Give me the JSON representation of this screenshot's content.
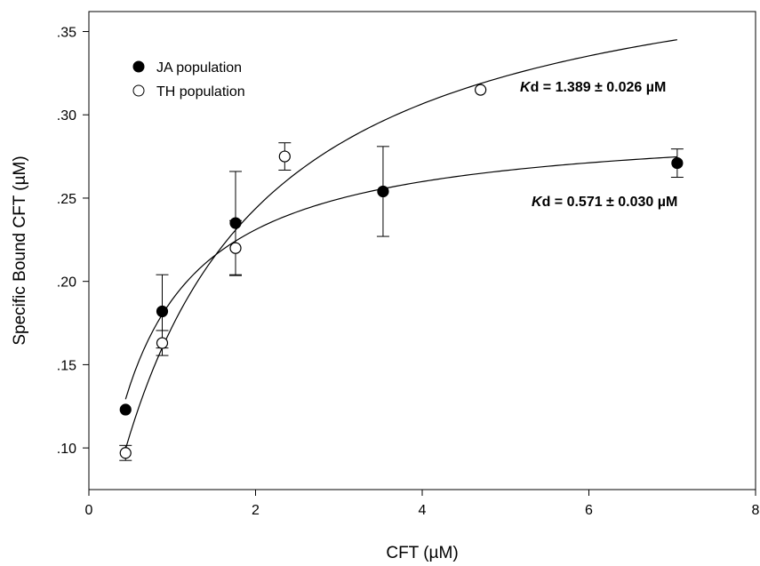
{
  "chart_data": {
    "type": "scatter",
    "title": "",
    "xlabel": "CFT (µM)",
    "ylabel": "Specific Bound CFT (µM)",
    "xlim": [
      0,
      8
    ],
    "ylim": [
      0.075,
      0.362
    ],
    "x_ticks": [
      0,
      2,
      4,
      6,
      8
    ],
    "x_tick_labels": [
      "0",
      "2",
      "4",
      "6",
      "8"
    ],
    "y_ticks": [
      0.1,
      0.15,
      0.2,
      0.25,
      0.3,
      0.35
    ],
    "y_tick_labels": [
      ".10",
      ".15",
      ".20",
      ".25",
      ".30",
      ".35"
    ],
    "grid": false,
    "legend_position": "top-left",
    "series": [
      {
        "name": "JA population",
        "marker": "filled-circle",
        "color": "#000000",
        "x": [
          0.44,
          0.88,
          1.76,
          3.53,
          7.06
        ],
        "y": [
          0.123,
          0.182,
          0.235,
          0.254,
          0.271
        ],
        "yerr": [
          0.0,
          0.022,
          0.031,
          0.027,
          0.0085
        ],
        "fit": {
          "model": "one-site binding",
          "Bmax": 0.297,
          "Kd": 0.571,
          "x_range": [
            0.44,
            7.06
          ]
        }
      },
      {
        "name": "TH population",
        "marker": "open-circle",
        "color": "#000000",
        "x": [
          0.44,
          0.88,
          1.76,
          2.35,
          4.7
        ],
        "y": [
          0.097,
          0.163,
          0.22,
          0.275,
          0.315
        ],
        "yerr": [
          0.0045,
          0.0075,
          0.0165,
          0.0082,
          0.0
        ],
        "fit": {
          "model": "one-site binding",
          "Bmax": 0.413,
          "Kd": 1.389,
          "x_range": [
            0.44,
            7.06
          ]
        }
      }
    ],
    "annotations": [
      {
        "text": "Kd = 1.389 ±  0.026  µM",
        "italic_prefix": "K",
        "rest": "d = 1.389 ±  0.026  µM",
        "series": "TH population"
      },
      {
        "text": "Kd = 0.571 ±  0.030  µM",
        "italic_prefix": "K",
        "rest": "d = 0.571 ±  0.030  µM",
        "series": "JA population"
      }
    ]
  }
}
